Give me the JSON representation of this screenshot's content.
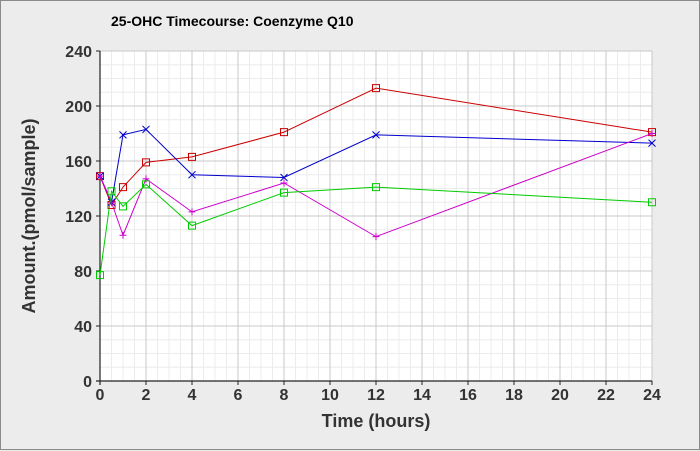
{
  "chart_data": {
    "type": "line",
    "title": "25-OHC Timecourse: Coenzyme Q10",
    "xlabel": "Time (hours)",
    "ylabel": "Amount.(pmol/sample)",
    "xlim": [
      0,
      24
    ],
    "ylim": [
      0,
      240
    ],
    "x_ticks": [
      0,
      2,
      4,
      6,
      8,
      10,
      12,
      14,
      16,
      18,
      20,
      22,
      24
    ],
    "y_ticks": [
      0,
      40,
      80,
      120,
      160,
      200,
      240
    ],
    "grid": true,
    "legend": "none",
    "series": [
      {
        "color": "#cc0000",
        "marker": "square",
        "points": [
          [
            0,
            149
          ],
          [
            0.5,
            128
          ],
          [
            1,
            141
          ],
          [
            2,
            159
          ],
          [
            4,
            163
          ],
          [
            8,
            181
          ],
          [
            12,
            213
          ],
          [
            24,
            181
          ]
        ]
      },
      {
        "color": "#0000cc",
        "marker": "x",
        "points": [
          [
            0,
            149
          ],
          [
            0.5,
            130
          ],
          [
            1,
            179
          ],
          [
            2,
            183
          ],
          [
            4,
            150
          ],
          [
            8,
            148
          ],
          [
            12,
            179
          ],
          [
            24,
            173
          ]
        ]
      },
      {
        "color": "#cc00cc",
        "marker": "plus",
        "points": [
          [
            0,
            149
          ],
          [
            0.5,
            130
          ],
          [
            1,
            106
          ],
          [
            2,
            147
          ],
          [
            4,
            123
          ],
          [
            8,
            144
          ],
          [
            12,
            105
          ],
          [
            24,
            180
          ]
        ]
      },
      {
        "color": "#00cc00",
        "marker": "square",
        "points": [
          [
            0,
            77
          ],
          [
            0.5,
            138
          ],
          [
            1,
            127
          ],
          [
            2,
            143
          ],
          [
            4,
            113
          ],
          [
            8,
            137
          ],
          [
            12,
            141
          ],
          [
            24,
            130
          ]
        ]
      }
    ]
  }
}
